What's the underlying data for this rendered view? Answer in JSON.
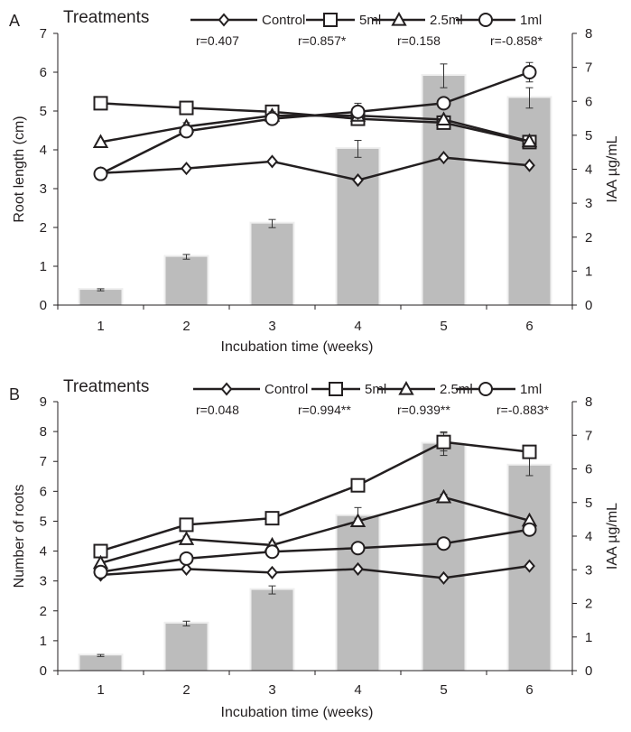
{
  "chart_data": [
    {
      "panel_label": "A",
      "type": "bar+line",
      "legend_title": "Treatments",
      "categories": [
        "1",
        "2",
        "3",
        "4",
        "5",
        "6"
      ],
      "xlabel": "Incubation time (weeks)",
      "ylabel": "Root length (cm)",
      "y2label": "IAA µg/mL",
      "ylim": [
        0,
        7
      ],
      "y2lim": [
        0,
        8
      ],
      "yticks": [
        "0",
        "1",
        "2",
        "3",
        "4",
        "5",
        "6",
        "7"
      ],
      "y2ticks": [
        "0",
        "1",
        "2",
        "3",
        "4",
        "5",
        "6",
        "7",
        "8"
      ],
      "bars": {
        "axis": "right",
        "values": [
          0.45,
          1.42,
          2.4,
          4.6,
          6.75,
          6.1
        ],
        "errors": [
          0.03,
          0.07,
          0.12,
          0.25,
          0.35,
          0.3
        ]
      },
      "series": [
        {
          "name": "Control",
          "marker": "diamond",
          "values": [
            3.4,
            3.52,
            3.7,
            3.22,
            3.8,
            3.6
          ],
          "errors": [
            0.05,
            0.05,
            0.05,
            0.05,
            0.05,
            0.05
          ]
        },
        {
          "name": "5ml",
          "marker": "square",
          "values": [
            5.2,
            5.08,
            4.98,
            4.8,
            4.7,
            4.2
          ],
          "errors": [
            0.05,
            0.05,
            0.05,
            0.05,
            0.1,
            0.05
          ]
        },
        {
          "name": "2.5ml",
          "marker": "triangle",
          "values": [
            4.2,
            4.6,
            4.88,
            4.88,
            4.78,
            4.22
          ],
          "errors": [
            0.05,
            0.1,
            0.1,
            0.1,
            0.1,
            0.05
          ]
        },
        {
          "name": "1ml",
          "marker": "circle",
          "values": [
            3.38,
            4.48,
            4.8,
            4.98,
            5.2,
            6.0
          ],
          "errors": [
            0.1,
            0.12,
            0.15,
            0.22,
            0.15,
            0.25
          ]
        }
      ],
      "correlations": [
        "r=0.407",
        "r=0.857*",
        "r=0.158",
        "r=-0.858*"
      ]
    },
    {
      "panel_label": "B",
      "type": "bar+line",
      "legend_title": "Treatments",
      "categories": [
        "1",
        "2",
        "3",
        "4",
        "5",
        "6"
      ],
      "xlabel": "Incubation time (weeks)",
      "ylabel": "Number of roots",
      "y2label": "IAA µg/mL",
      "ylim": [
        0,
        9
      ],
      "y2lim": [
        0,
        8
      ],
      "yticks": [
        "0",
        "1",
        "2",
        "3",
        "4",
        "5",
        "6",
        "7",
        "8",
        "9"
      ],
      "y2ticks": [
        "0",
        "1",
        "2",
        "3",
        "4",
        "5",
        "6",
        "7",
        "8"
      ],
      "bars": {
        "axis": "right",
        "values": [
          0.45,
          1.4,
          2.4,
          4.6,
          6.75,
          6.1
        ],
        "errors": [
          0.03,
          0.07,
          0.12,
          0.25,
          0.35,
          0.3
        ]
      },
      "series": [
        {
          "name": "Control",
          "marker": "diamond",
          "values": [
            3.2,
            3.4,
            3.28,
            3.4,
            3.1,
            3.5
          ],
          "errors": [
            0.05,
            0.05,
            0.05,
            0.05,
            0.05,
            0.05
          ]
        },
        {
          "name": "5ml",
          "marker": "square",
          "values": [
            4.0,
            4.88,
            5.1,
            6.2,
            7.65,
            7.32
          ],
          "errors": [
            0.05,
            0.05,
            0.05,
            0.05,
            0.3,
            0.05
          ]
        },
        {
          "name": "2.5ml",
          "marker": "triangle",
          "values": [
            3.6,
            4.4,
            4.2,
            5.0,
            5.8,
            5.02
          ],
          "errors": [
            0.05,
            0.1,
            0.1,
            0.1,
            0.1,
            0.05
          ]
        },
        {
          "name": "1ml",
          "marker": "circle",
          "values": [
            3.3,
            3.75,
            3.98,
            4.1,
            4.25,
            4.72
          ],
          "errors": [
            0.1,
            0.12,
            0.15,
            0.15,
            0.1,
            0.15
          ]
        }
      ],
      "correlations": [
        "r=0.048",
        "r=0.994**",
        "r=0.939**",
        "r=-0.883*"
      ]
    }
  ]
}
